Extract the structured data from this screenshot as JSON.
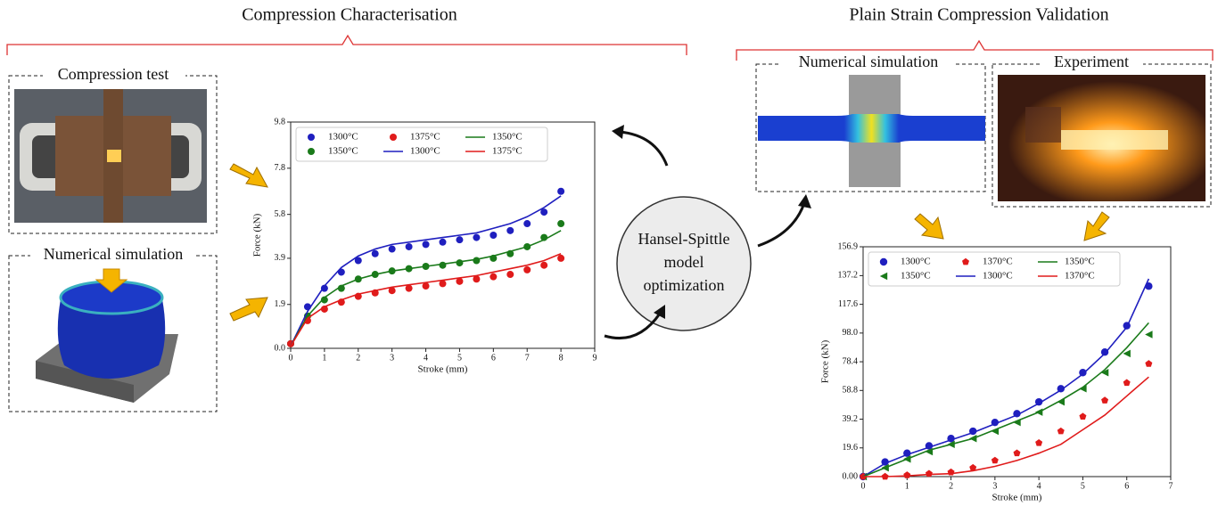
{
  "left_title": "Compression Characterisation",
  "right_title": "Plain Strain Compression Validation",
  "panels": {
    "compression_test": "Compression test",
    "left_simulation": "Numerical simulation",
    "right_simulation": "Numerical simulation",
    "experiment": "Experiment"
  },
  "center_label": [
    "Hansel-Spittle",
    "model",
    "optimization"
  ],
  "chart_data": [
    {
      "type": "line",
      "x_label": "Stroke (mm)",
      "y_label": "Force (kN)",
      "x": [
        0,
        0.5,
        1,
        1.5,
        2,
        2.5,
        3,
        3.5,
        4,
        4.5,
        5,
        5.5,
        6,
        6.5,
        7,
        7.5,
        8
      ],
      "xlim": [
        0,
        9
      ],
      "xticks": [
        0,
        1,
        2,
        3,
        4,
        5,
        6,
        7,
        8,
        9
      ],
      "ylim": [
        0,
        9.8
      ],
      "yticks": [
        {
          "value": 0,
          "label": "0.0"
        },
        1.9,
        3.9,
        5.8,
        7.8,
        9.8
      ],
      "legend": "upper left",
      "series": [
        {
          "name": "1300°C",
          "color": "#1f1fbf",
          "mode": "markers",
          "marker": "circle",
          "values": [
            0.2,
            1.8,
            2.6,
            3.3,
            3.8,
            4.1,
            4.3,
            4.4,
            4.5,
            4.6,
            4.7,
            4.8,
            4.9,
            5.1,
            5.4,
            5.9,
            6.8
          ]
        },
        {
          "name": "1350°C",
          "color": "#1a7a1a",
          "mode": "markers",
          "marker": "circle",
          "values": [
            0.2,
            1.4,
            2.1,
            2.6,
            3.0,
            3.2,
            3.35,
            3.45,
            3.55,
            3.6,
            3.7,
            3.8,
            3.9,
            4.1,
            4.4,
            4.8,
            5.4
          ]
        },
        {
          "name": "1375°C",
          "color": "#e01b1b",
          "mode": "markers",
          "marker": "circle",
          "values": [
            0.2,
            1.2,
            1.7,
            2.0,
            2.25,
            2.4,
            2.5,
            2.6,
            2.7,
            2.8,
            2.9,
            3.0,
            3.1,
            3.2,
            3.4,
            3.6,
            3.9
          ]
        },
        {
          "name": "1300°C",
          "color": "#1f1fbf",
          "mode": "lines",
          "values": [
            0.1,
            1.6,
            2.7,
            3.5,
            4.0,
            4.3,
            4.5,
            4.6,
            4.7,
            4.8,
            4.9,
            5.0,
            5.2,
            5.4,
            5.7,
            6.1,
            6.6
          ]
        },
        {
          "name": "1350°C",
          "color": "#1a7a1a",
          "mode": "lines",
          "values": [
            0.1,
            1.4,
            2.2,
            2.7,
            3.0,
            3.2,
            3.35,
            3.45,
            3.55,
            3.65,
            3.75,
            3.85,
            4.0,
            4.2,
            4.4,
            4.7,
            5.1
          ]
        },
        {
          "name": "1375°C",
          "color": "#e01b1b",
          "mode": "lines",
          "values": [
            0.1,
            1.3,
            1.8,
            2.1,
            2.35,
            2.5,
            2.65,
            2.75,
            2.85,
            2.95,
            3.05,
            3.15,
            3.3,
            3.45,
            3.6,
            3.8,
            4.1
          ]
        }
      ]
    },
    {
      "type": "line",
      "x_label": "Stroke (mm)",
      "y_label": "Force (kN)",
      "x": [
        0,
        0.5,
        1,
        1.5,
        2,
        2.5,
        3,
        3.5,
        4,
        4.5,
        5,
        5.5,
        6,
        6.5
      ],
      "xlim": [
        0,
        7
      ],
      "xticks": [
        0,
        1,
        2,
        3,
        4,
        5,
        6,
        7
      ],
      "ylim": [
        0,
        156.9
      ],
      "yticks": [
        {
          "value": 0,
          "label": "0.00"
        },
        19.6,
        39.2,
        58.8,
        78.4,
        {
          "value": 98,
          "label": "98.0"
        },
        117.6,
        137.2,
        156.9
      ],
      "legend": "upper left",
      "series": [
        {
          "name": "1300°C",
          "color": "#1f1fbf",
          "mode": "markers",
          "marker": "circle",
          "values": [
            0,
            10,
            16,
            21,
            26,
            31,
            37,
            43,
            51,
            60,
            71,
            85,
            103,
            130
          ]
        },
        {
          "name": "1350°C",
          "color": "#1a7a1a",
          "mode": "markers",
          "marker": "triangle-left",
          "values": [
            0,
            6,
            12,
            17,
            22,
            26,
            31,
            37,
            44,
            51,
            60,
            71,
            84,
            97
          ]
        },
        {
          "name": "1370°C",
          "color": "#e01b1b",
          "mode": "markers",
          "marker": "pentagon",
          "values": [
            0,
            0,
            1,
            2,
            3,
            6,
            11,
            16,
            23,
            31,
            41,
            52,
            64,
            77
          ]
        },
        {
          "name": "1300°C",
          "color": "#1f1fbf",
          "mode": "lines",
          "values": [
            0,
            9,
            15,
            20,
            25,
            30,
            36,
            42,
            50,
            59,
            70,
            84,
            102,
            135
          ]
        },
        {
          "name": "1350°C",
          "color": "#1a7a1a",
          "mode": "lines",
          "values": [
            0,
            6,
            12,
            18,
            22,
            26,
            32,
            38,
            44,
            52,
            61,
            73,
            88,
            105
          ]
        },
        {
          "name": "1370°C",
          "color": "#e01b1b",
          "mode": "lines",
          "values": [
            0,
            0,
            0.5,
            1.5,
            2,
            4,
            7,
            11,
            16,
            22,
            32,
            42,
            55,
            68
          ]
        }
      ]
    }
  ]
}
